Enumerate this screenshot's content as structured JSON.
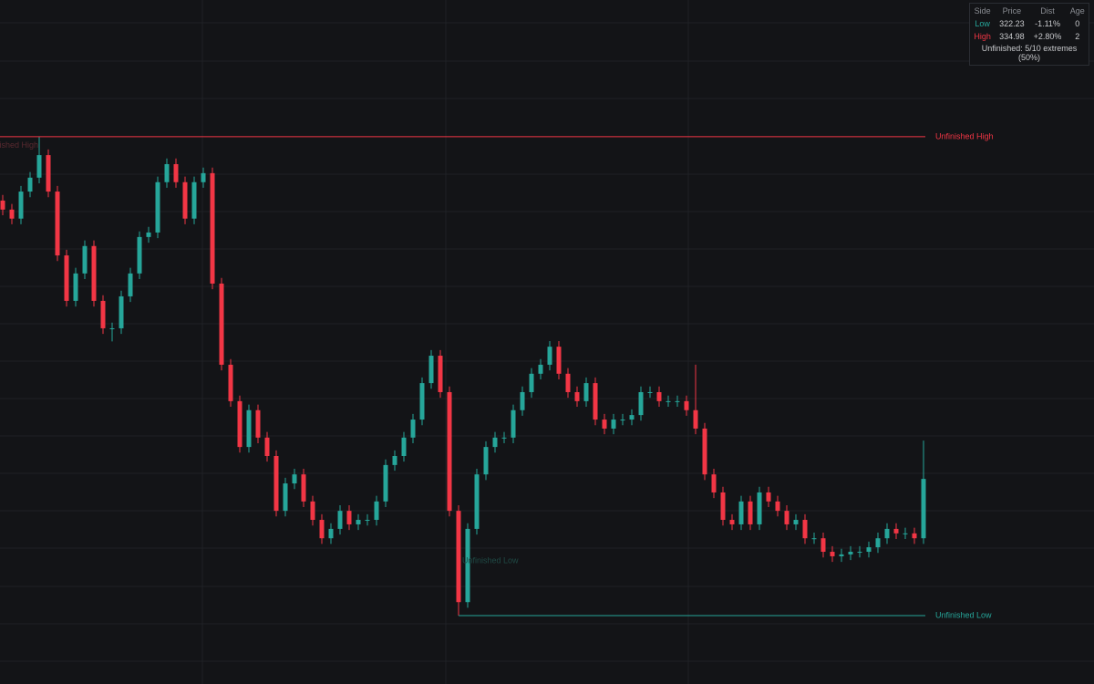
{
  "chart_data": {
    "type": "candlestick",
    "ylim": [
      320.41,
      338.62
    ],
    "up_color": "#26a69a",
    "down_color": "#f23645",
    "open": [
      333.28,
      333.04,
      332.8,
      333.52,
      333.89,
      334.49,
      333.52,
      331.82,
      330.61,
      331.34,
      332.07,
      330.61,
      329.88,
      329.88,
      330.73,
      331.34,
      332.31,
      332.43,
      333.77,
      334.25,
      333.77,
      332.8,
      333.77,
      334.01,
      331.07,
      328.91,
      327.94,
      326.72,
      327.7,
      326.97,
      326.48,
      325.02,
      325.75,
      325.99,
      325.27,
      324.78,
      324.29,
      324.54,
      325.02,
      324.66,
      324.78,
      324.78,
      325.27,
      326.24,
      326.48,
      326.97,
      327.45,
      328.42,
      329.15,
      328.18,
      325.02,
      322.59,
      324.54,
      325.99,
      326.72,
      326.97,
      326.97,
      327.7,
      328.18,
      328.67,
      328.91,
      329.39,
      328.67,
      328.18,
      327.94,
      328.42,
      327.45,
      327.21,
      327.45,
      327.45,
      327.57,
      328.18,
      328.18,
      327.94,
      327.94,
      327.94,
      327.7,
      327.21,
      325.99,
      325.51,
      324.78,
      324.66,
      325.27,
      324.66,
      325.51,
      325.27,
      325.02,
      324.66,
      324.78,
      324.29,
      324.29,
      323.93,
      323.81,
      323.86,
      323.93,
      323.93,
      324.05,
      324.29,
      324.54,
      324.42,
      324.42,
      324.29
    ],
    "high": [
      333.43,
      333.19,
      333.67,
      334.04,
      334.98,
      334.64,
      333.67,
      331.97,
      331.49,
      332.22,
      332.22,
      330.76,
      330.03,
      330.88,
      331.49,
      332.46,
      332.58,
      333.92,
      334.4,
      334.4,
      333.92,
      333.92,
      334.16,
      334.16,
      331.22,
      329.06,
      328.09,
      327.85,
      327.85,
      327.12,
      326.63,
      325.9,
      326.14,
      326.14,
      325.42,
      324.93,
      324.69,
      325.17,
      325.17,
      324.93,
      324.93,
      325.42,
      326.39,
      326.63,
      327.12,
      327.6,
      328.57,
      329.3,
      329.3,
      328.33,
      325.17,
      324.69,
      326.14,
      326.87,
      327.12,
      327.12,
      327.85,
      328.33,
      328.82,
      329.06,
      329.54,
      329.54,
      328.82,
      328.33,
      328.57,
      328.57,
      327.6,
      327.6,
      327.6,
      327.72,
      328.33,
      328.33,
      328.33,
      328.09,
      328.09,
      328.09,
      328.91,
      327.36,
      326.14,
      325.66,
      324.93,
      325.42,
      325.42,
      325.66,
      325.66,
      325.42,
      325.17,
      324.93,
      324.93,
      324.44,
      324.44,
      324.08,
      324.01,
      324.08,
      324.08,
      324.2,
      324.44,
      324.69,
      324.69,
      324.57,
      324.57,
      326.89
    ],
    "low": [
      332.89,
      332.65,
      332.65,
      333.37,
      333.74,
      333.37,
      331.67,
      330.46,
      330.46,
      331.19,
      330.46,
      329.73,
      329.53,
      329.73,
      330.58,
      331.19,
      332.16,
      332.28,
      333.62,
      333.62,
      332.65,
      332.65,
      333.62,
      330.92,
      328.76,
      327.79,
      326.57,
      326.57,
      326.82,
      326.33,
      324.87,
      324.87,
      325.6,
      325.12,
      324.63,
      324.14,
      324.14,
      324.39,
      324.51,
      324.51,
      324.63,
      324.63,
      325.12,
      326.09,
      326.33,
      326.82,
      327.3,
      328.27,
      328.03,
      324.87,
      322.23,
      322.44,
      324.39,
      325.84,
      326.57,
      326.82,
      326.82,
      327.55,
      328.03,
      328.52,
      328.76,
      328.52,
      328.03,
      327.79,
      327.79,
      327.3,
      327.06,
      327.06,
      327.3,
      327.3,
      327.42,
      328.03,
      327.79,
      327.79,
      327.79,
      327.55,
      327.06,
      325.84,
      325.36,
      324.63,
      324.51,
      324.51,
      324.51,
      324.51,
      325.12,
      324.87,
      324.51,
      324.51,
      324.14,
      324.14,
      323.78,
      323.66,
      323.66,
      323.71,
      323.78,
      323.78,
      323.9,
      324.14,
      324.27,
      324.27,
      324.14,
      324.14
    ],
    "close": [
      333.04,
      332.8,
      333.52,
      333.89,
      334.49,
      333.52,
      331.82,
      330.61,
      331.34,
      332.07,
      330.61,
      329.88,
      329.88,
      330.73,
      331.34,
      332.31,
      332.43,
      333.77,
      334.25,
      333.77,
      332.8,
      333.77,
      334.01,
      331.07,
      328.91,
      327.94,
      326.72,
      327.7,
      326.97,
      326.48,
      325.02,
      325.75,
      325.99,
      325.27,
      324.78,
      324.29,
      324.54,
      325.02,
      324.66,
      324.78,
      324.78,
      325.27,
      326.24,
      326.48,
      326.97,
      327.45,
      328.42,
      329.15,
      328.18,
      325.02,
      322.59,
      324.54,
      325.99,
      326.72,
      326.97,
      326.97,
      327.7,
      328.18,
      328.67,
      328.91,
      329.39,
      328.67,
      328.18,
      327.94,
      328.42,
      327.45,
      327.21,
      327.45,
      327.45,
      327.57,
      328.18,
      328.18,
      327.94,
      327.94,
      327.94,
      327.7,
      327.21,
      325.99,
      325.51,
      324.78,
      324.66,
      325.27,
      324.66,
      325.51,
      325.27,
      325.02,
      324.66,
      324.78,
      324.29,
      324.29,
      323.93,
      323.81,
      323.86,
      323.93,
      323.93,
      324.05,
      324.29,
      324.54,
      324.42,
      324.42,
      324.29,
      325.87
    ],
    "levels": [
      {
        "name": "Unfinished High",
        "value": 334.98,
        "color": "#f23645"
      },
      {
        "name": "Unfinished Low",
        "value": 322.23,
        "color": "#26a69a"
      }
    ],
    "ghost_labels": [
      {
        "text": "Unfinished High",
        "value": 334.74,
        "color": "#5a2a30"
      },
      {
        "text": "Unfinished Low",
        "value": 323.69,
        "color": "#1f4a45"
      }
    ]
  },
  "table": {
    "columns": [
      "Side",
      "Price",
      "Dist",
      "Age"
    ],
    "rows": [
      [
        "Low",
        "322.23",
        "-1.11%",
        "0"
      ],
      [
        "High",
        "334.98",
        "+2.80%",
        "2"
      ]
    ],
    "footer": "Unfinished: 5/10 extremes (50%)"
  }
}
